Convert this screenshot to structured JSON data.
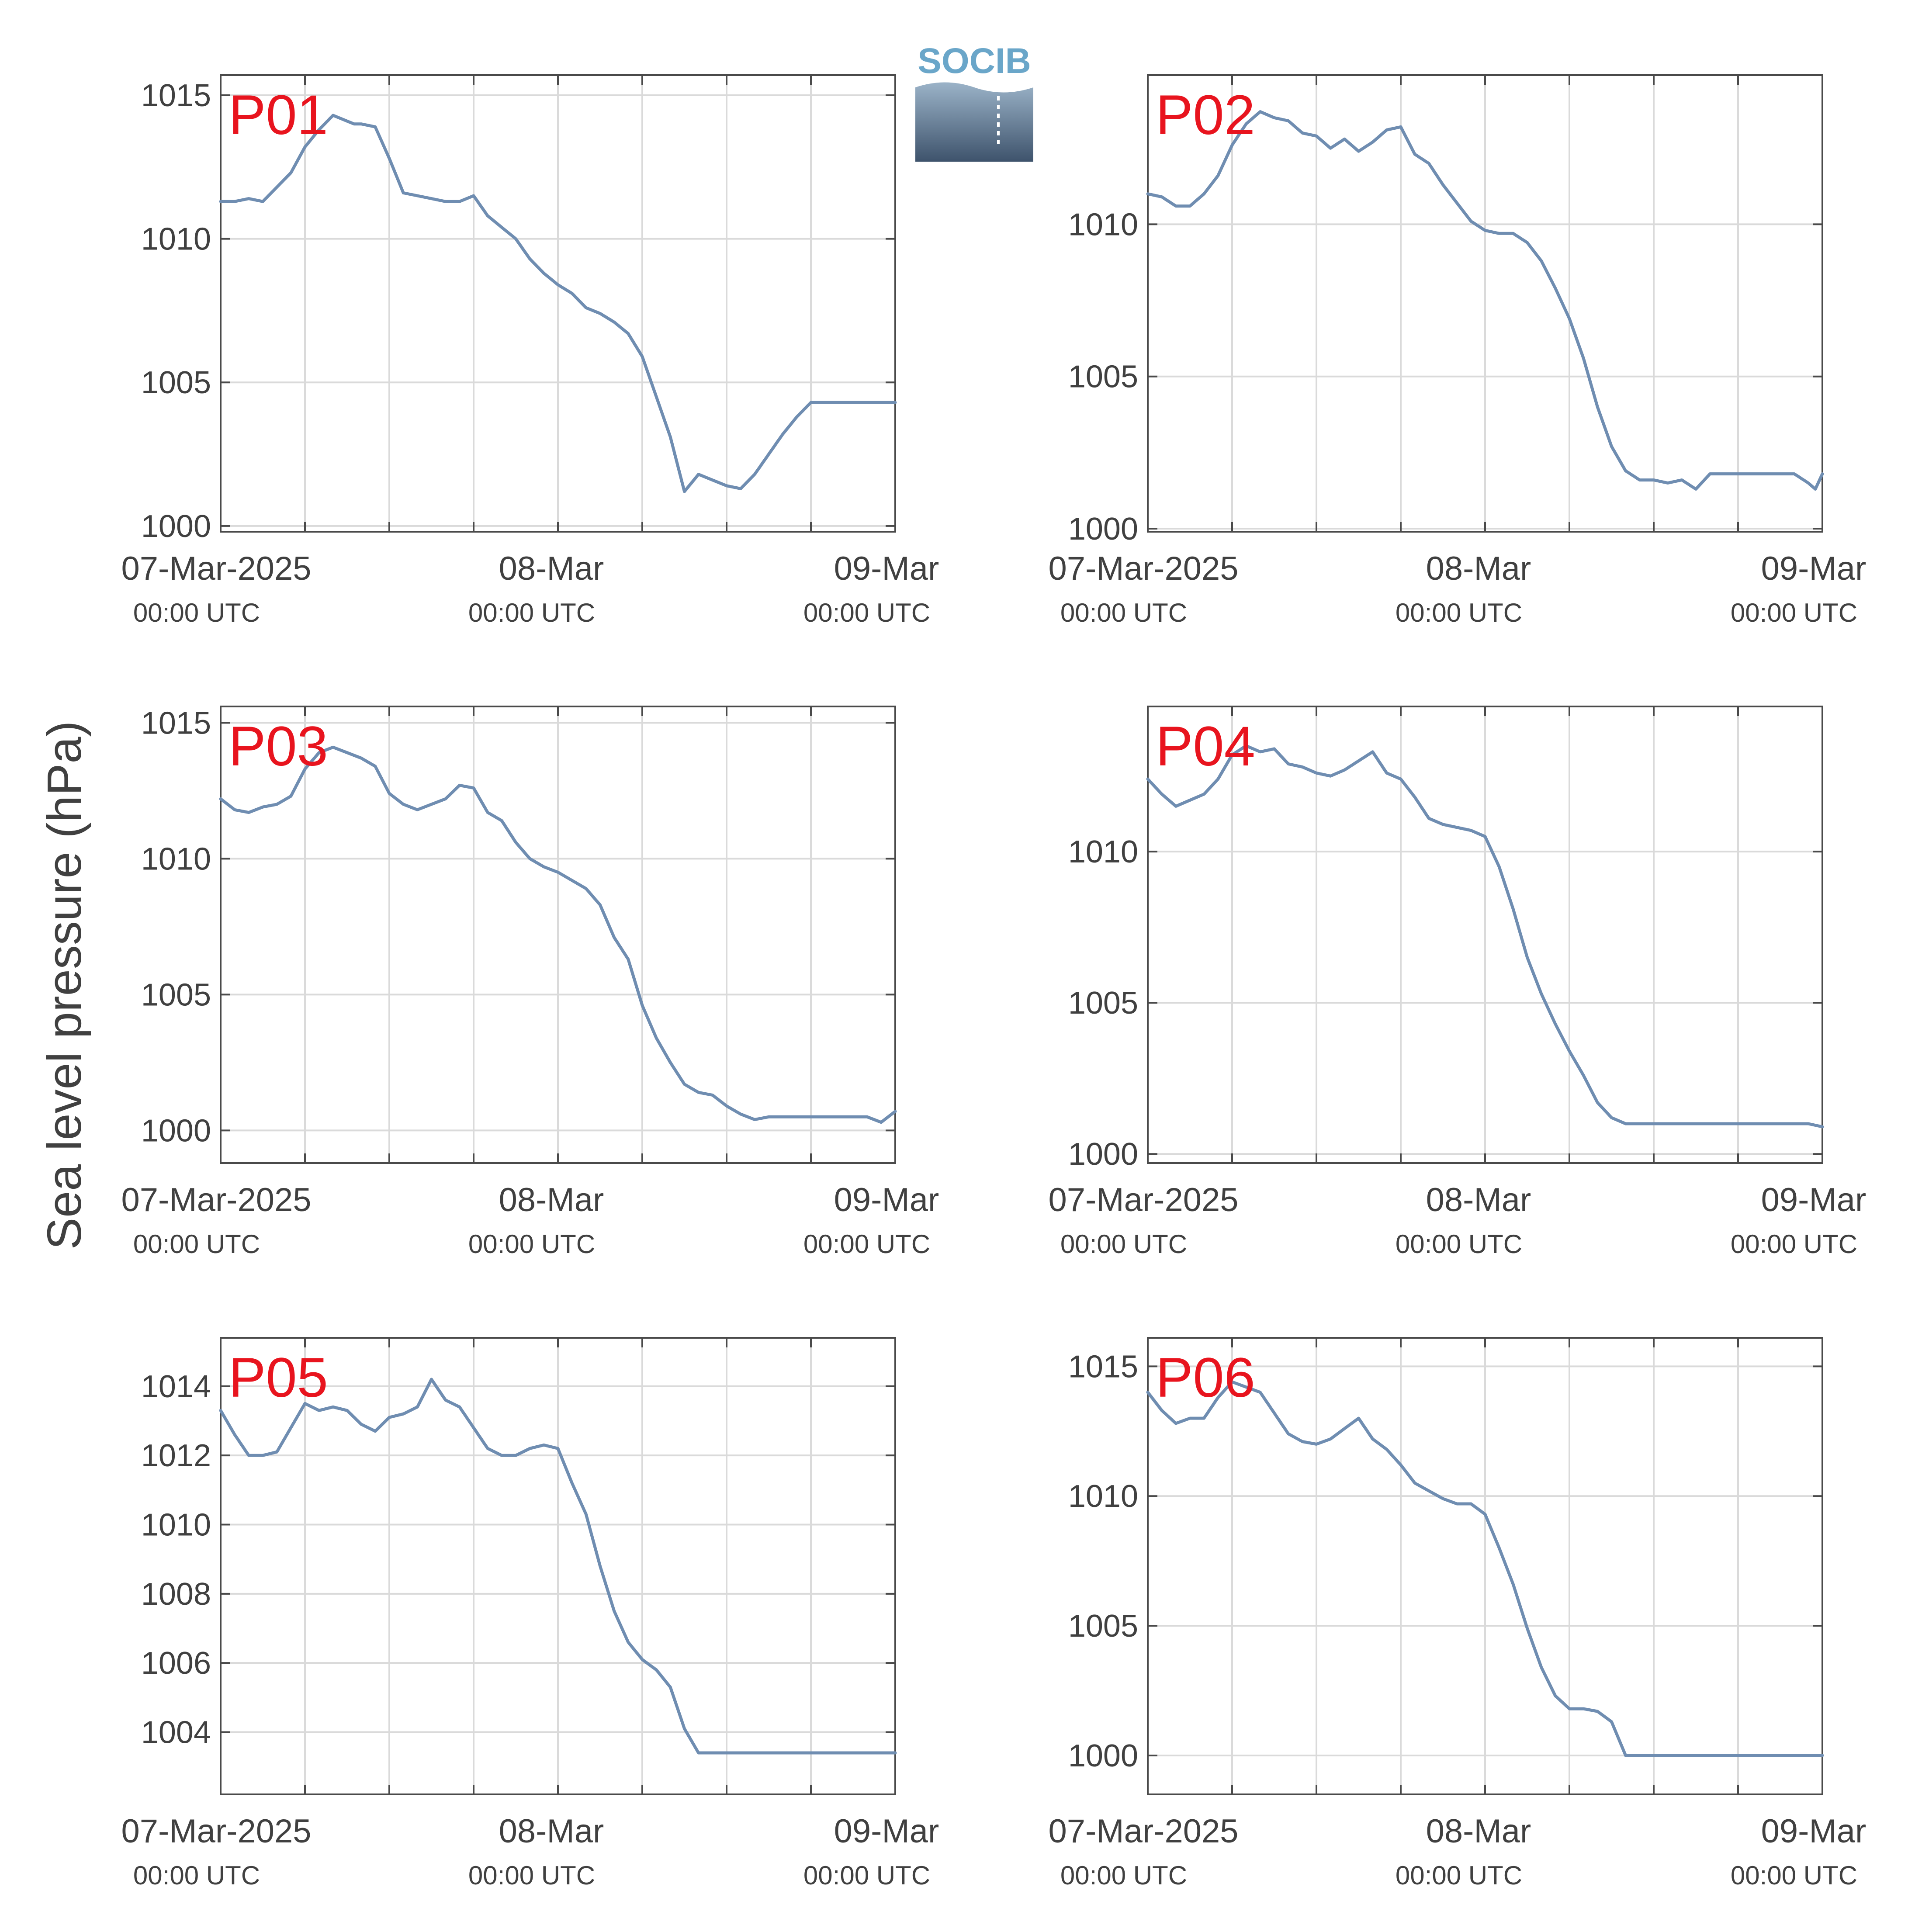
{
  "figure": {
    "ylabel": "Sea level pressure (hPa)",
    "logo_text": "SOCIB",
    "colors": {
      "line": "#6f8db1",
      "panel_label": "#e8141e",
      "axis": "#4a4a4a",
      "grid": "#dadada",
      "text": "#404040",
      "logo_blue": "#6aa6c9",
      "logo_dark": "#3e536c"
    }
  },
  "chart_data": [
    {
      "type": "line",
      "panel_label": "P01",
      "xlabel_ticks": [
        {
          "x": 0,
          "date": "07-Mar-2025",
          "time": "00:00 UTC"
        },
        {
          "x": 24,
          "date": "08-Mar",
          "time": "00:00 UTC"
        },
        {
          "x": 48,
          "date": "09-Mar",
          "time": "00:00 UTC"
        }
      ],
      "xlim": [
        0,
        48
      ],
      "ylim": [
        999.8,
        1015.7
      ],
      "yticks": [
        1000,
        1005,
        1010,
        1015
      ],
      "grid": true,
      "series": [
        {
          "x": [
            0,
            1,
            2,
            3,
            4,
            5,
            6,
            7,
            8,
            9,
            9.5,
            10,
            11,
            12,
            13,
            14,
            15,
            16,
            17,
            18,
            19,
            20,
            21,
            22,
            23,
            24,
            25,
            26,
            27,
            28,
            29,
            30,
            31,
            32,
            33,
            34,
            35,
            36,
            37,
            38,
            39,
            40,
            41,
            42,
            43,
            44,
            45,
            46,
            47,
            48
          ],
          "values": [
            1011.3,
            1011.3,
            1011.4,
            1011.3,
            1011.8,
            1012.3,
            1013.2,
            1013.8,
            1014.3,
            1014.1,
            1014.0,
            1014.0,
            1013.9,
            1012.8,
            1011.6,
            1011.5,
            1011.4,
            1011.3,
            1011.3,
            1011.5,
            1010.8,
            1010.4,
            1010.0,
            1009.3,
            1008.8,
            1008.4,
            1008.1,
            1007.6,
            1007.4,
            1007.1,
            1006.7,
            1005.9,
            1004.5,
            1003.1,
            1001.2,
            1001.8,
            1001.6,
            1001.4,
            1001.3,
            1001.8,
            1002.5,
            1003.2,
            1003.8,
            1004.3,
            1004.3,
            1004.3,
            1004.3,
            1004.3,
            1004.3,
            1004.3
          ]
        }
      ]
    },
    {
      "type": "line",
      "panel_label": "P02",
      "xlabel_ticks": [
        {
          "x": 0,
          "date": "07-Mar-2025",
          "time": "00:00 UTC"
        },
        {
          "x": 24,
          "date": "08-Mar",
          "time": "00:00 UTC"
        },
        {
          "x": 48,
          "date": "09-Mar",
          "time": "00:00 UTC"
        }
      ],
      "xlim": [
        0,
        48
      ],
      "ylim": [
        999.9,
        1014.9
      ],
      "yticks": [
        1000,
        1005,
        1010
      ],
      "grid": true,
      "series": [
        {
          "x": [
            0,
            1,
            2,
            3,
            4,
            5,
            6,
            7,
            8,
            9,
            10,
            11,
            12,
            13,
            14,
            15,
            16,
            17,
            18,
            19,
            20,
            21,
            22,
            23,
            24,
            25,
            26,
            27,
            28,
            29,
            30,
            31,
            32,
            33,
            34,
            35,
            36,
            37,
            38,
            39,
            40,
            41,
            42,
            43,
            44,
            45,
            46,
            47,
            47.5,
            48
          ],
          "values": [
            1011.0,
            1010.9,
            1010.6,
            1010.6,
            1011.0,
            1011.6,
            1012.6,
            1013.3,
            1013.7,
            1013.5,
            1013.4,
            1013.0,
            1012.9,
            1012.5,
            1012.8,
            1012.4,
            1012.7,
            1013.1,
            1013.2,
            1012.3,
            1012.0,
            1011.3,
            1010.7,
            1010.1,
            1009.8,
            1009.7,
            1009.7,
            1009.4,
            1008.8,
            1007.9,
            1006.9,
            1005.6,
            1004.0,
            1002.7,
            1001.9,
            1001.6,
            1001.6,
            1001.5,
            1001.6,
            1001.3,
            1001.8,
            1001.8,
            1001.8,
            1001.8,
            1001.8,
            1001.8,
            1001.8,
            1001.5,
            1001.3,
            1001.8
          ]
        }
      ]
    },
    {
      "type": "line",
      "panel_label": "P03",
      "xlabel_ticks": [
        {
          "x": 0,
          "date": "07-Mar-2025",
          "time": "00:00 UTC"
        },
        {
          "x": 24,
          "date": "08-Mar",
          "time": "00:00 UTC"
        },
        {
          "x": 48,
          "date": "09-Mar",
          "time": "00:00 UTC"
        }
      ],
      "xlim": [
        0,
        48
      ],
      "ylim": [
        998.8,
        1015.6
      ],
      "yticks": [
        1000,
        1005,
        1010,
        1015
      ],
      "grid": true,
      "series": [
        {
          "x": [
            0,
            1,
            2,
            3,
            4,
            5,
            6,
            7,
            8,
            9,
            10,
            11,
            12,
            13,
            14,
            15,
            16,
            17,
            18,
            19,
            20,
            21,
            22,
            23,
            24,
            25,
            26,
            27,
            28,
            29,
            30,
            31,
            32,
            33,
            34,
            35,
            36,
            37,
            38,
            39,
            40,
            41,
            42,
            43,
            44,
            45,
            46,
            47,
            48
          ],
          "values": [
            1012.2,
            1011.8,
            1011.7,
            1011.9,
            1012.0,
            1012.3,
            1013.3,
            1013.9,
            1014.1,
            1013.9,
            1013.7,
            1013.4,
            1012.4,
            1012.0,
            1011.8,
            1012.0,
            1012.2,
            1012.7,
            1012.6,
            1011.7,
            1011.4,
            1010.6,
            1010.0,
            1009.7,
            1009.5,
            1009.2,
            1008.9,
            1008.3,
            1007.1,
            1006.3,
            1004.6,
            1003.4,
            1002.5,
            1001.7,
            1001.4,
            1001.3,
            1000.9,
            1000.6,
            1000.4,
            1000.5,
            1000.5,
            1000.5,
            1000.5,
            1000.5,
            1000.5,
            1000.5,
            1000.5,
            1000.3,
            1000.7
          ]
        }
      ]
    },
    {
      "type": "line",
      "panel_label": "P04",
      "xlabel_ticks": [
        {
          "x": 0,
          "date": "07-Mar-2025",
          "time": "00:00 UTC"
        },
        {
          "x": 24,
          "date": "08-Mar",
          "time": "00:00 UTC"
        },
        {
          "x": 48,
          "date": "09-Mar",
          "time": "00:00 UTC"
        }
      ],
      "xlim": [
        0,
        48
      ],
      "ylim": [
        999.7,
        1014.8
      ],
      "yticks": [
        1000,
        1005,
        1010
      ],
      "grid": true,
      "series": [
        {
          "x": [
            0,
            1,
            2,
            3,
            4,
            5,
            6,
            7,
            8,
            9,
            10,
            11,
            12,
            13,
            14,
            15,
            16,
            17,
            18,
            19,
            20,
            21,
            22,
            23,
            24,
            25,
            26,
            27,
            28,
            29,
            30,
            31,
            32,
            33,
            34,
            35,
            36,
            37,
            38,
            39,
            40,
            41,
            42,
            43,
            44,
            45,
            46,
            47,
            48
          ],
          "values": [
            1012.4,
            1011.9,
            1011.5,
            1011.7,
            1011.9,
            1012.4,
            1013.2,
            1013.5,
            1013.3,
            1013.4,
            1012.9,
            1012.8,
            1012.6,
            1012.5,
            1012.7,
            1013.0,
            1013.3,
            1012.6,
            1012.4,
            1011.8,
            1011.1,
            1010.9,
            1010.8,
            1010.7,
            1010.5,
            1009.5,
            1008.1,
            1006.5,
            1005.3,
            1004.3,
            1003.4,
            1002.6,
            1001.7,
            1001.2,
            1001.0,
            1001.0,
            1001.0,
            1001.0,
            1001.0,
            1001.0,
            1001.0,
            1001.0,
            1001.0,
            1001.0,
            1001.0,
            1001.0,
            1001.0,
            1001.0,
            1000.9
          ]
        }
      ]
    },
    {
      "type": "line",
      "panel_label": "P05",
      "xlabel_ticks": [
        {
          "x": 0,
          "date": "07-Mar-2025",
          "time": "00:00 UTC"
        },
        {
          "x": 24,
          "date": "08-Mar",
          "time": "00:00 UTC"
        },
        {
          "x": 48,
          "date": "09-Mar",
          "time": "00:00 UTC"
        }
      ],
      "xlim": [
        0,
        48
      ],
      "ylim": [
        1002.2,
        1015.4
      ],
      "yticks": [
        1004,
        1006,
        1008,
        1010,
        1012,
        1014
      ],
      "grid": true,
      "series": [
        {
          "x": [
            0,
            1,
            2,
            3,
            4,
            5,
            6,
            7,
            8,
            9,
            10,
            11,
            12,
            13,
            14,
            15,
            16,
            17,
            18,
            19,
            20,
            21,
            22,
            23,
            24,
            25,
            26,
            27,
            28,
            29,
            30,
            31,
            32,
            33,
            34,
            35,
            36,
            37,
            38,
            39,
            40,
            41,
            42,
            43,
            44,
            45,
            46,
            47,
            48
          ],
          "values": [
            1013.3,
            1012.6,
            1012.0,
            1012.0,
            1012.1,
            1012.8,
            1013.5,
            1013.3,
            1013.4,
            1013.3,
            1012.9,
            1012.7,
            1013.1,
            1013.2,
            1013.4,
            1014.2,
            1013.6,
            1013.4,
            1012.8,
            1012.2,
            1012.0,
            1012.0,
            1012.2,
            1012.3,
            1012.2,
            1011.2,
            1010.3,
            1008.8,
            1007.5,
            1006.6,
            1006.1,
            1005.8,
            1005.3,
            1004.1,
            1003.4,
            1003.4,
            1003.4,
            1003.4,
            1003.4,
            1003.4,
            1003.4,
            1003.4,
            1003.4,
            1003.4,
            1003.4,
            1003.4,
            1003.4,
            1003.4,
            1003.4
          ]
        }
      ]
    },
    {
      "type": "line",
      "panel_label": "P06",
      "xlabel_ticks": [
        {
          "x": 0,
          "date": "07-Mar-2025",
          "time": "00:00 UTC"
        },
        {
          "x": 24,
          "date": "08-Mar",
          "time": "00:00 UTC"
        },
        {
          "x": 48,
          "date": "09-Mar",
          "time": "00:00 UTC"
        }
      ],
      "xlim": [
        0,
        48
      ],
      "ylim": [
        998.5,
        1016.1
      ],
      "yticks": [
        1000,
        1005,
        1010,
        1015
      ],
      "grid": true,
      "series": [
        {
          "x": [
            0,
            1,
            2,
            3,
            4,
            5,
            6,
            7,
            8,
            9,
            10,
            11,
            12,
            13,
            14,
            15,
            16,
            17,
            18,
            19,
            20,
            21,
            22,
            23,
            24,
            25,
            26,
            27,
            28,
            29,
            30,
            31,
            32,
            33,
            34,
            35,
            36,
            37,
            38,
            39,
            40,
            41,
            42,
            43,
            44,
            45,
            46,
            47,
            48
          ],
          "values": [
            1014.0,
            1013.3,
            1012.8,
            1013.0,
            1013.0,
            1013.8,
            1014.4,
            1014.2,
            1014.0,
            1013.2,
            1012.4,
            1012.1,
            1012.0,
            1012.2,
            1012.6,
            1013.0,
            1012.2,
            1011.8,
            1011.2,
            1010.5,
            1010.2,
            1009.9,
            1009.7,
            1009.7,
            1009.3,
            1008.0,
            1006.6,
            1004.9,
            1003.4,
            1002.3,
            1001.8,
            1001.8,
            1001.7,
            1001.3,
            1000.0,
            1000.0,
            1000.0,
            1000.0,
            1000.0,
            1000.0,
            1000.0,
            1000.0,
            1000.0,
            1000.0,
            1000.0,
            1000.0,
            1000.0,
            1000.0,
            1000.0
          ]
        }
      ]
    }
  ]
}
